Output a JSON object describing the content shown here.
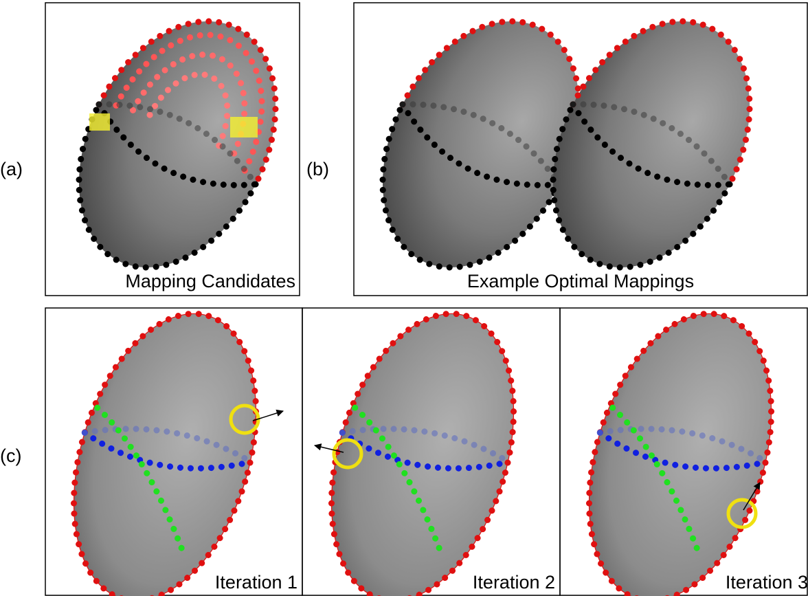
{
  "panels": [
    {
      "label": "(a)",
      "caption": "Mapping Candidates"
    },
    {
      "label": "(b)",
      "caption": "Example Optimal Mappings"
    },
    {
      "label": "(c)",
      "captions": [
        "Iteration 1",
        "Iteration 2",
        "Iteration 3"
      ]
    }
  ]
}
